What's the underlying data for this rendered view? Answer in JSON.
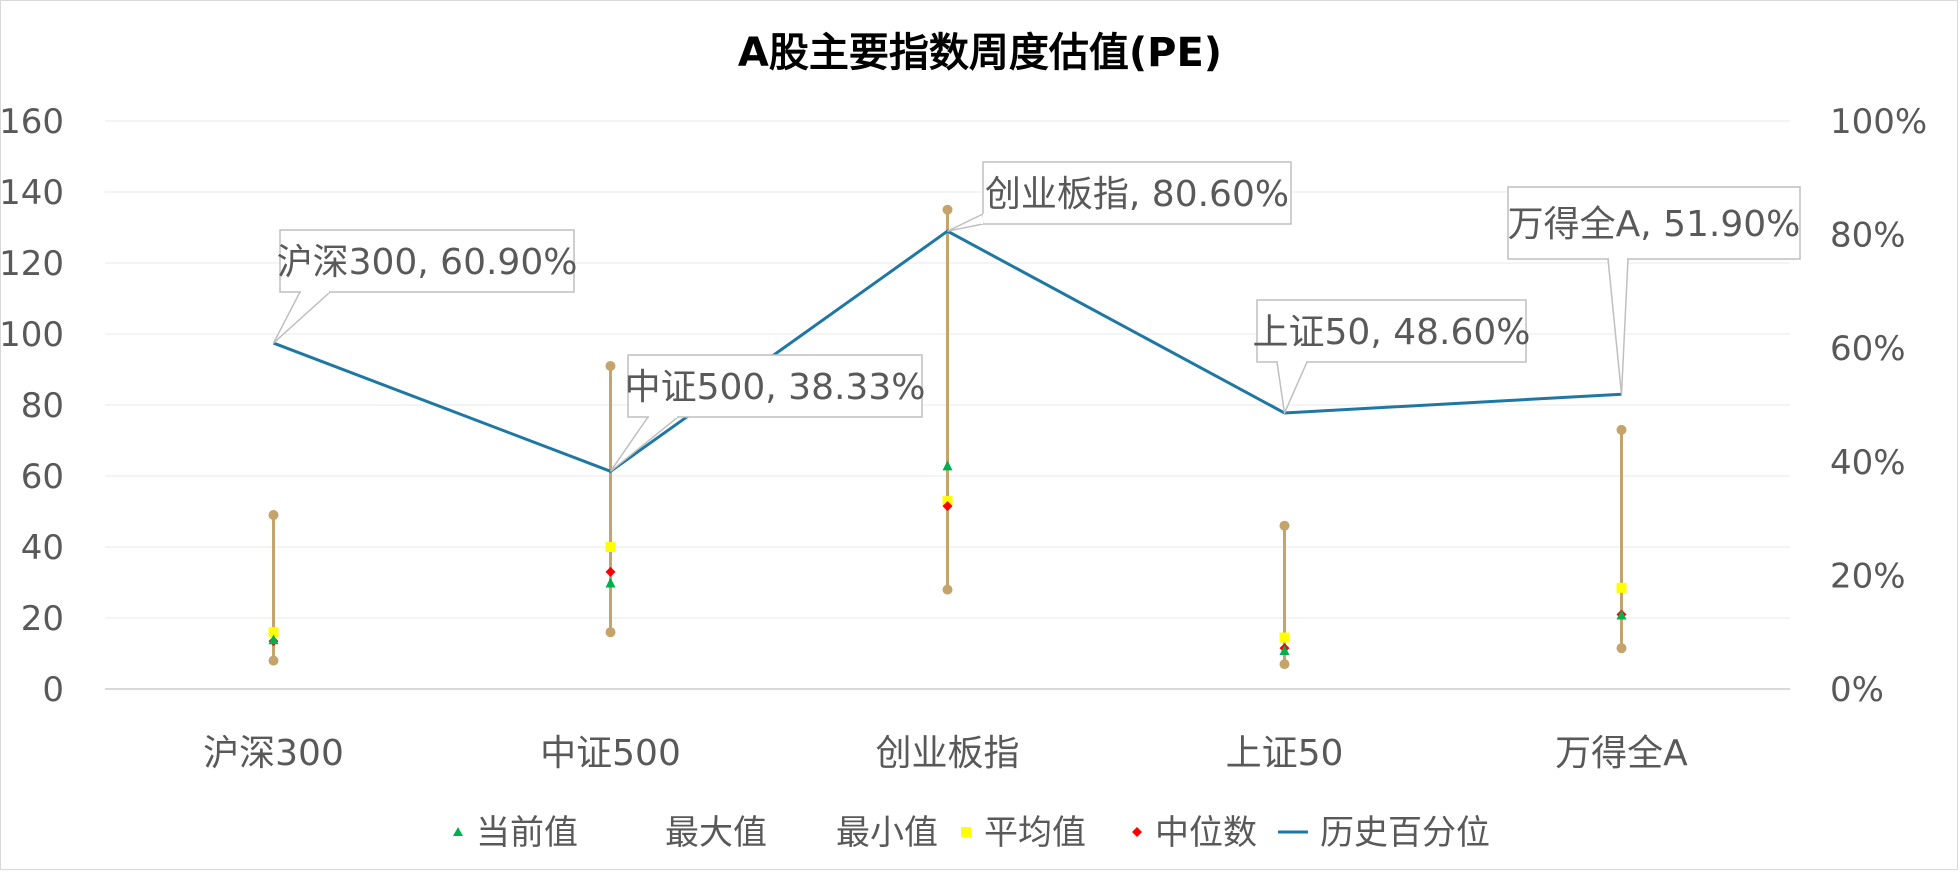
{
  "chart_data": {
    "type": "line",
    "title": "A股主要指数周度估值(PE)",
    "categories": [
      "沪深300",
      "中证500",
      "创业板指",
      "上证50",
      "万得全A"
    ],
    "y_left": {
      "min": 0,
      "max": 160,
      "ticks": [
        "0",
        "20",
        "40",
        "60",
        "80",
        "100",
        "120",
        "140",
        "160"
      ]
    },
    "y_right": {
      "min": 0,
      "max": 100,
      "ticks": [
        "0%",
        "20%",
        "40%",
        "60%",
        "80%",
        "100%"
      ]
    },
    "grid": true,
    "legend_position": "bottom",
    "series": [
      {
        "name": "当前值",
        "axis": "left",
        "marker": "triangle",
        "color": "#00b050",
        "values": [
          14,
          30,
          63,
          11,
          21
        ]
      },
      {
        "name": "最大值",
        "axis": "left",
        "marker": "circle",
        "color": "#c4a46c",
        "values": [
          49,
          91,
          135,
          46,
          73
        ]
      },
      {
        "name": "最小值",
        "axis": "left",
        "marker": "circle",
        "color": "#c4a46c",
        "values": [
          8,
          16,
          28,
          7,
          11.5
        ]
      },
      {
        "name": "平均值",
        "axis": "left",
        "marker": "square",
        "color": "#ffff00",
        "values": [
          16,
          40,
          53,
          14.5,
          28.5
        ]
      },
      {
        "name": "中位数",
        "axis": "left",
        "marker": "diamond",
        "color": "#ff0000",
        "values": [
          13.5,
          33,
          51.5,
          11.5,
          21
        ]
      },
      {
        "name": "历史百分位",
        "axis": "right",
        "marker": "line",
        "color": "#1f77a4",
        "values": [
          60.9,
          38.33,
          80.6,
          48.6,
          51.9
        ]
      }
    ],
    "annotations": [
      {
        "text": "沪深300, 60.90%",
        "series": "历史百分位",
        "index": 0
      },
      {
        "text": "中证500, 38.33%",
        "series": "历史百分位",
        "index": 1
      },
      {
        "text": "创业板指, 80.60%",
        "series": "历史百分位",
        "index": 2
      },
      {
        "text": "上证50, 48.60%",
        "series": "历史百分位",
        "index": 3
      },
      {
        "text": "万得全A, 51.90%",
        "series": "历史百分位",
        "index": 4
      }
    ]
  }
}
